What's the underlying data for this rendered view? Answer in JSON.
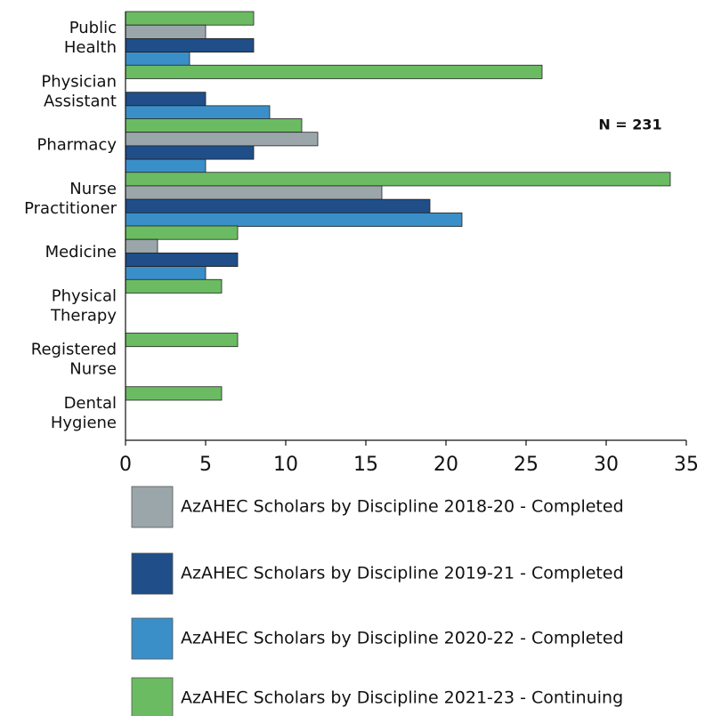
{
  "chart_data": {
    "type": "bar",
    "orientation": "horizontal",
    "annotation": "N = 231",
    "categories": [
      "Public Health",
      "Physician Assistant",
      "Pharmacy",
      "Nurse Practitioner",
      "Medicine",
      "Physical Therapy",
      "Registered Nurse",
      "Dental Hygiene"
    ],
    "series": [
      {
        "name": "AzAHEC Scholars by Discipline 2018-20 - Completed",
        "color": "#9ba6ab",
        "values": [
          5,
          null,
          12,
          16,
          2,
          null,
          null,
          null
        ]
      },
      {
        "name": "AzAHEC Scholars by Discipline 2019-21 - Completed",
        "color": "#1f4e89",
        "values": [
          8,
          5,
          8,
          19,
          7,
          null,
          null,
          null
        ]
      },
      {
        "name": "AzAHEC Scholars by Discipline 2020-22 - Completed",
        "color": "#3b8fc8",
        "values": [
          4,
          9,
          5,
          21,
          5,
          null,
          null,
          null
        ]
      },
      {
        "name": "AzAHEC Scholars by Discipline 2021-23 - Continuing",
        "color": "#6bbb62",
        "values": [
          8,
          26,
          11,
          34,
          7,
          6,
          7,
          6
        ]
      }
    ],
    "xlim": [
      0,
      35
    ],
    "xticks": [
      0,
      5,
      10,
      15,
      20,
      25,
      30,
      35
    ],
    "grid": false
  }
}
